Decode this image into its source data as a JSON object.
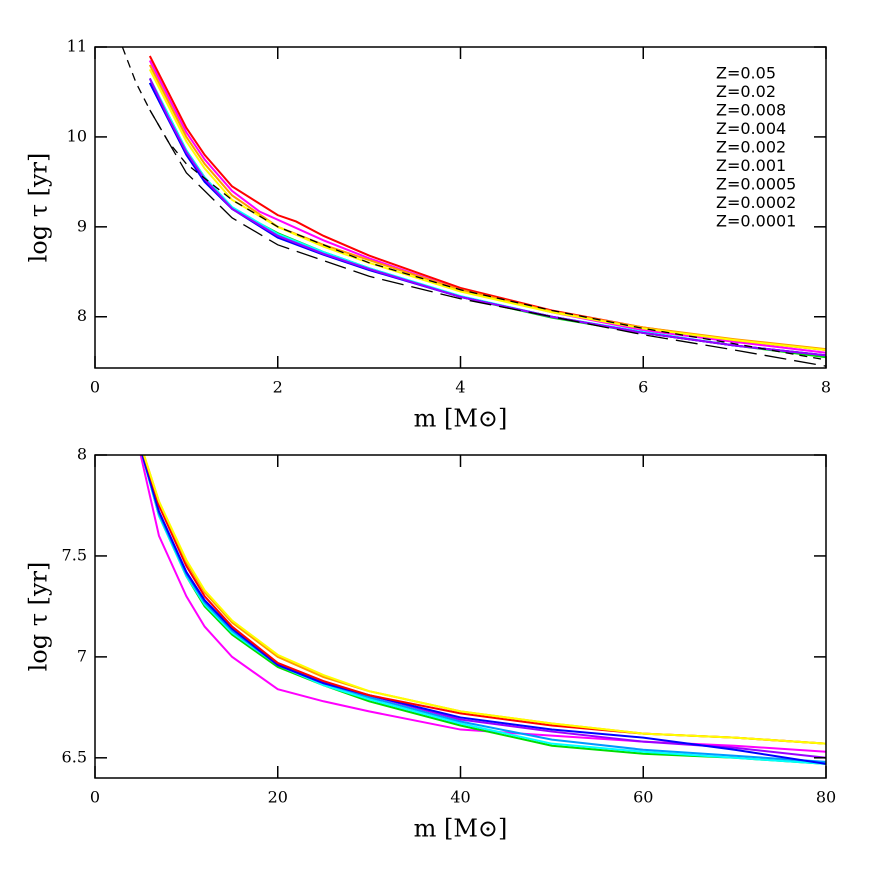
{
  "chart_data": [
    {
      "type": "line",
      "xlabel": "m [M⊙]",
      "ylabel": "log τ [yr]",
      "xlim": [
        0,
        8
      ],
      "ylim": [
        7.43,
        11
      ],
      "xticks": [
        0,
        2,
        4,
        6,
        8
      ],
      "yticks": [
        8,
        9,
        10,
        11
      ],
      "legend": "upper right",
      "series": [
        {
          "name": "Z=0.05",
          "color": "#ff00ff",
          "x": [
            0.6,
            0.8,
            1,
            1.2,
            1.5,
            1.8,
            2.5,
            3,
            4,
            5,
            6,
            7,
            8
          ],
          "values": [
            10.85,
            10.45,
            10.05,
            9.75,
            9.4,
            9.17,
            8.85,
            8.65,
            8.3,
            8.05,
            7.85,
            7.72,
            7.6
          ]
        },
        {
          "name": "Z=0.02",
          "color": "#ff0000",
          "x": [
            0.6,
            0.8,
            1,
            1.2,
            1.5,
            2,
            2.2,
            2.5,
            3,
            4,
            5,
            6,
            7,
            8
          ],
          "values": [
            10.9,
            10.5,
            10.1,
            9.8,
            9.45,
            9.13,
            9.06,
            8.9,
            8.68,
            8.32,
            8.07,
            7.88,
            7.74,
            7.63
          ]
        },
        {
          "name": "Z=0.008",
          "color": "#ff9900",
          "x": [
            0.6,
            0.8,
            1,
            1.2,
            1.5,
            2,
            2.5,
            3,
            4,
            5,
            6,
            7,
            8
          ],
          "values": [
            10.8,
            10.4,
            10.0,
            9.7,
            9.35,
            9.0,
            8.8,
            8.63,
            8.3,
            8.06,
            7.88,
            7.75,
            7.64
          ]
        },
        {
          "name": "Z=0.004",
          "color": "#ffff00",
          "x": [
            0.6,
            0.8,
            1,
            1.2,
            1.5,
            2,
            2.5,
            3,
            4,
            5,
            6,
            7,
            8
          ],
          "values": [
            10.75,
            10.35,
            9.95,
            9.65,
            9.3,
            9.0,
            8.78,
            8.6,
            8.28,
            8.05,
            7.87,
            7.74,
            7.63
          ]
        },
        {
          "name": "Z=0.002",
          "color": "#00dd00",
          "x": [
            0.6,
            0.8,
            1,
            1.2,
            1.5,
            2,
            2.5,
            3,
            4,
            5,
            6,
            7,
            8
          ],
          "values": [
            10.65,
            10.25,
            9.85,
            9.55,
            9.2,
            8.93,
            8.72,
            8.54,
            8.22,
            7.99,
            7.82,
            7.68,
            7.55
          ]
        },
        {
          "name": "Z=0.001",
          "color": "#00ffff",
          "x": [
            0.6,
            0.8,
            1,
            1.2,
            1.5,
            2,
            2.5,
            3,
            4,
            5,
            6,
            7,
            8
          ],
          "values": [
            10.65,
            10.25,
            9.85,
            9.55,
            9.22,
            8.92,
            8.72,
            8.54,
            8.23,
            8.0,
            7.83,
            7.68,
            7.57
          ]
        },
        {
          "name": "Z=0.0005",
          "color": "#0099ff",
          "x": [
            0.6,
            0.8,
            1,
            1.2,
            1.5,
            2,
            2.5,
            3,
            4,
            5,
            6,
            7,
            8
          ],
          "values": [
            10.6,
            10.2,
            9.82,
            9.52,
            9.2,
            8.9,
            8.7,
            8.53,
            8.22,
            8.0,
            7.82,
            7.68,
            7.57
          ]
        },
        {
          "name": "Z=0.0002",
          "color": "#0000ff",
          "x": [
            0.6,
            0.8,
            1,
            1.2,
            1.5,
            2,
            2.5,
            3,
            4,
            5,
            6,
            7,
            8
          ],
          "values": [
            10.6,
            10.2,
            9.8,
            9.5,
            9.2,
            8.88,
            8.69,
            8.52,
            8.22,
            8.0,
            7.82,
            7.68,
            7.57
          ]
        },
        {
          "name": "Z=0.0001",
          "color": "#9900ff",
          "x": [
            0.6,
            0.8,
            1,
            1.2,
            1.5,
            2,
            2.5,
            3,
            4,
            5,
            6,
            7,
            8
          ],
          "values": [
            10.65,
            10.22,
            9.83,
            9.53,
            9.2,
            8.9,
            8.7,
            8.53,
            8.22,
            8.0,
            7.82,
            7.68,
            7.57
          ]
        },
        {
          "color": "#000000",
          "linestyle": "dashed",
          "x": [
            0.3,
            0.45,
            0.6,
            0.8,
            1,
            1.5,
            2,
            3,
            4,
            5,
            6,
            7,
            8
          ],
          "values": [
            11,
            10.6,
            10.3,
            9.95,
            9.7,
            9.3,
            9.0,
            8.6,
            8.3,
            8.07,
            7.87,
            7.7,
            7.52
          ]
        },
        {
          "color": "#000000",
          "linestyle": "long-dashed",
          "x": [
            0.6,
            1,
            1.5,
            2,
            3,
            4,
            5,
            6,
            7,
            8
          ],
          "values": [
            10.3,
            9.6,
            9.1,
            8.8,
            8.45,
            8.2,
            8.0,
            7.8,
            7.63,
            7.45
          ]
        }
      ]
    },
    {
      "type": "line",
      "xlabel": "m [M⊙]",
      "ylabel": "log τ [yr]",
      "xlim": [
        0,
        80
      ],
      "ylim": [
        6.4,
        8
      ],
      "xticks": [
        0,
        20,
        40,
        60,
        80
      ],
      "yticks": [
        {
          "value": 6.5,
          "label": "6.5"
        },
        7,
        {
          "value": 7.5,
          "label": "7.5"
        },
        8
      ],
      "series": [
        {
          "color": "#ff00ff",
          "x": [
            5,
            7,
            10,
            12,
            15,
            20,
            25,
            30,
            40,
            50,
            60,
            70,
            80
          ],
          "values": [
            8.0,
            7.6,
            7.3,
            7.15,
            7.0,
            6.84,
            6.78,
            6.73,
            6.64,
            6.61,
            6.58,
            6.56,
            6.53
          ]
        },
        {
          "color": "#00dd00",
          "x": [
            5,
            7,
            10,
            12,
            15,
            20,
            25,
            30,
            40,
            50,
            60,
            70,
            80
          ],
          "values": [
            8.03,
            7.7,
            7.4,
            7.25,
            7.11,
            6.95,
            6.86,
            6.78,
            6.66,
            6.56,
            6.52,
            6.5,
            6.47
          ]
        },
        {
          "color": "#00ffff",
          "x": [
            5,
            7,
            10,
            12,
            15,
            20,
            25,
            30,
            40,
            50,
            60,
            70,
            80
          ],
          "values": [
            8.03,
            7.7,
            7.4,
            7.26,
            7.12,
            6.96,
            6.86,
            6.79,
            6.67,
            6.57,
            6.53,
            6.5,
            6.47
          ]
        },
        {
          "color": "#0099ff",
          "x": [
            5,
            7,
            10,
            12,
            15,
            20,
            25,
            30,
            40,
            50,
            60,
            70,
            80
          ],
          "values": [
            8.03,
            7.71,
            7.41,
            7.27,
            7.13,
            6.96,
            6.87,
            6.8,
            6.68,
            6.59,
            6.54,
            6.51,
            6.48
          ]
        },
        {
          "color": "#9900ff",
          "x": [
            5,
            7,
            10,
            12,
            15,
            20,
            25,
            30,
            40,
            50,
            60,
            70,
            80
          ],
          "values": [
            8.03,
            7.72,
            7.42,
            7.28,
            7.14,
            6.96,
            6.87,
            6.81,
            6.69,
            6.63,
            6.58,
            6.55,
            6.5
          ]
        },
        {
          "color": "#0000ff",
          "x": [
            5,
            7,
            10,
            12,
            15,
            20,
            25,
            30,
            40,
            50,
            60,
            70,
            80
          ],
          "values": [
            8.03,
            7.72,
            7.42,
            7.28,
            7.14,
            6.96,
            6.87,
            6.81,
            6.7,
            6.64,
            6.6,
            6.54,
            6.47
          ]
        },
        {
          "color": "#ff0000",
          "x": [
            5,
            7,
            10,
            12,
            15,
            20,
            25,
            30,
            40,
            50,
            60,
            70,
            80
          ],
          "values": [
            8.05,
            7.75,
            7.45,
            7.3,
            7.15,
            6.97,
            6.88,
            6.81,
            6.72,
            6.66,
            6.62,
            6.6,
            6.57
          ]
        },
        {
          "color": "#ff9900",
          "x": [
            5,
            7,
            10,
            12,
            15,
            20,
            25,
            30,
            40,
            50,
            60,
            70,
            80
          ],
          "values": [
            8.05,
            7.77,
            7.47,
            7.32,
            7.17,
            7.0,
            6.9,
            6.83,
            6.73,
            6.67,
            6.62,
            6.6,
            6.57
          ]
        },
        {
          "color": "#ffff00",
          "x": [
            5,
            7,
            10,
            12,
            15,
            20,
            25,
            30,
            40,
            50,
            60,
            70,
            80
          ],
          "values": [
            8.05,
            7.77,
            7.48,
            7.33,
            7.18,
            7.01,
            6.91,
            6.83,
            6.73,
            6.67,
            6.62,
            6.6,
            6.57
          ]
        }
      ]
    }
  ]
}
